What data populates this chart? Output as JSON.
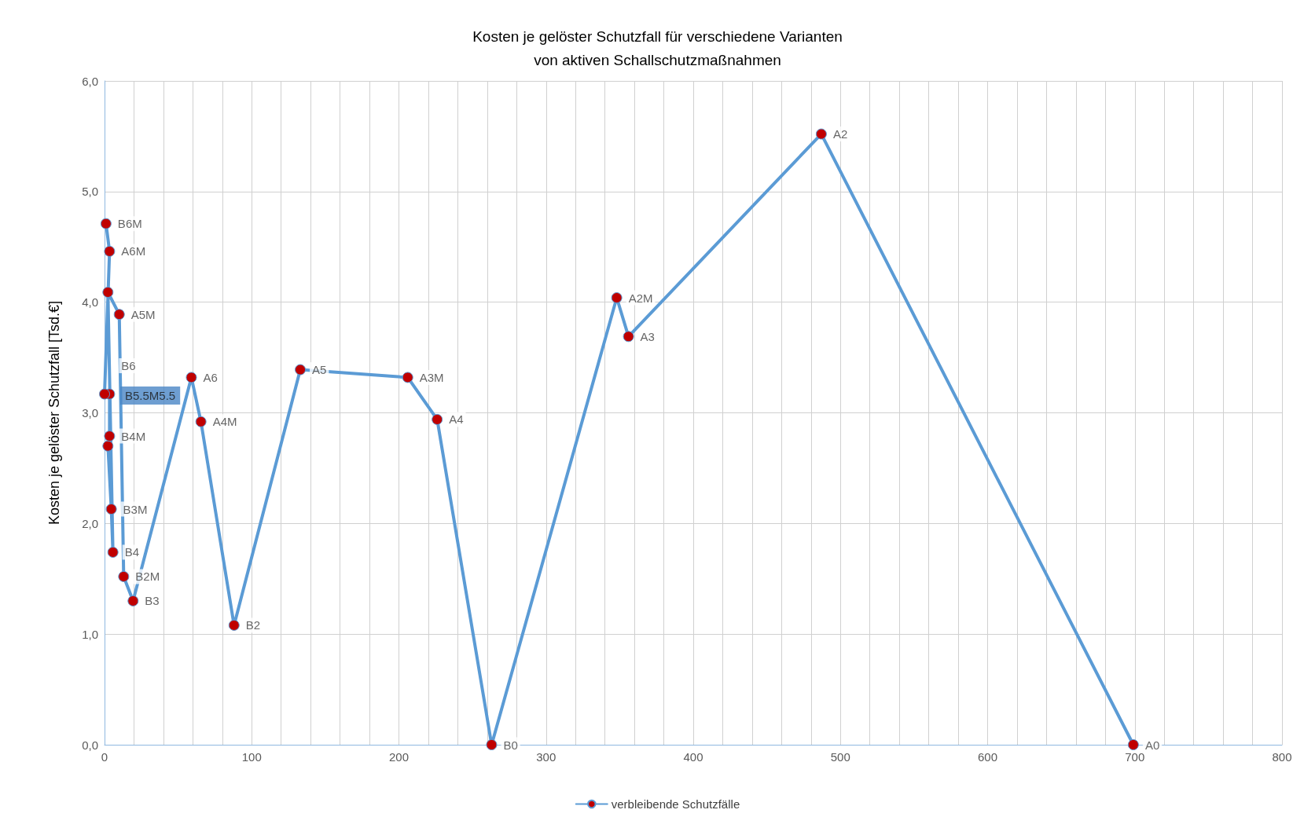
{
  "chart_data": {
    "type": "line",
    "title": "Kosten je gelöster Schutzfall für verschiedene Varianten\nvon aktiven Schallschutzmaßnahmen",
    "ylabel": "Kosten je gelöster Schutzfall [Tsd.€]",
    "series": [
      {
        "name": "verbleibende Schutzfälle",
        "color": "#5b9bd5",
        "x": [
          699,
          487,
          356,
          348,
          263,
          226,
          206,
          133,
          88,
          65.5,
          59,
          19.4,
          13,
          10,
          2.3,
          5.7,
          4.6,
          2.3,
          3.4,
          3.4,
          0,
          3.4,
          1
        ],
        "values": [
          0,
          5.52,
          3.69,
          4.04,
          0,
          2.94,
          3.32,
          3.39,
          1.08,
          2.92,
          3.32,
          1.3,
          1.52,
          3.89,
          4.09,
          1.74,
          2.13,
          2.7,
          2.79,
          3.17,
          3.17,
          4.46,
          4.71
        ],
        "colors": [
          "#c00000",
          "#c00000",
          "#c00000",
          "#c00000",
          "#c00000",
          "#c00000",
          "#c00000",
          "#c00000",
          "#c00000",
          "#c00000",
          "#c00000",
          "#c00000",
          "#c00000",
          "#c00000",
          "#c00000",
          "#c00000",
          "#c00000",
          "#c00000",
          "#c00000",
          "#c00000",
          "#c00000",
          "#c00000",
          "#c00000"
        ]
      }
    ],
    "annotations": [
      {
        "text": "A0",
        "x": 699,
        "y": 0
      },
      {
        "text": "A2",
        "x": 487,
        "y": 5.52
      },
      {
        "text": "A3",
        "x": 356,
        "y": 3.69
      },
      {
        "text": "A2M",
        "x": 348,
        "y": 4.04
      },
      {
        "text": "B0",
        "x": 263,
        "y": 0
      },
      {
        "text": "A4",
        "x": 226,
        "y": 2.94
      },
      {
        "text": "A3M",
        "x": 206,
        "y": 3.32
      },
      {
        "text": "A5",
        "x": 133,
        "y": 3.39
      },
      {
        "text": "B2",
        "x": 88,
        "y": 1.08
      },
      {
        "text": "A4M",
        "x": 65.5,
        "y": 2.92
      },
      {
        "text": "A6",
        "x": 59,
        "y": 3.32
      },
      {
        "text": "B3",
        "x": 19.4,
        "y": 1.3
      },
      {
        "text": "B2M",
        "x": 13,
        "y": 1.52
      },
      {
        "text": "A5M",
        "x": 10,
        "y": 3.89
      },
      {
        "text": "B4",
        "x": 5.7,
        "y": 1.74
      },
      {
        "text": "B3M",
        "x": 4.6,
        "y": 2.13
      },
      {
        "text": "B4M",
        "x": 3.4,
        "y": 2.79
      },
      {
        "text": "B6",
        "x": 3.4,
        "y": 3.17
      },
      {
        "text": "B5.5M5.5",
        "x": 0,
        "y": 3.17
      },
      {
        "text": "A6M",
        "x": 3.4,
        "y": 4.46
      },
      {
        "text": "B6M",
        "x": 1,
        "y": 4.71
      }
    ],
    "xlim": [
      0,
      800
    ],
    "xticks": [
      0,
      {
        "value": 20,
        "label": null
      },
      {
        "value": 40,
        "label": null
      },
      {
        "value": 60,
        "label": null
      },
      {
        "value": 80,
        "label": null
      },
      100,
      {
        "value": 120,
        "label": null
      },
      {
        "value": 140,
        "label": null
      },
      {
        "value": 160,
        "label": null
      },
      {
        "value": 180,
        "label": null
      },
      200,
      {
        "value": 220,
        "label": null
      },
      {
        "value": 240,
        "label": null
      },
      {
        "value": 260,
        "label": null
      },
      {
        "value": 280,
        "label": null
      },
      300,
      {
        "value": 320,
        "label": null
      },
      {
        "value": 340,
        "label": null
      },
      {
        "value": 360,
        "label": null
      },
      {
        "value": 380,
        "label": null
      },
      400,
      {
        "value": 420,
        "label": null
      },
      {
        "value": 440,
        "label": null
      },
      {
        "value": 460,
        "label": null
      },
      {
        "value": 480,
        "label": null
      },
      500,
      {
        "value": 520,
        "label": null
      },
      {
        "value": 540,
        "label": null
      },
      {
        "value": 560,
        "label": null
      },
      {
        "value": 580,
        "label": null
      },
      600,
      {
        "value": 620,
        "label": null
      },
      {
        "value": 640,
        "label": null
      },
      {
        "value": 660,
        "label": null
      },
      {
        "value": 680,
        "label": null
      },
      700,
      {
        "value": 720,
        "label": null
      },
      {
        "value": 740,
        "label": null
      },
      {
        "value": 760,
        "label": null
      },
      {
        "value": 780,
        "label": null
      },
      800
    ],
    "ylim": [
      0,
      6
    ],
    "yticks": [
      {
        "value": 0,
        "label": "0,0"
      },
      {
        "value": 1,
        "label": "1,0"
      },
      {
        "value": 2,
        "label": "2,0"
      },
      {
        "value": 3,
        "label": "3,0"
      },
      {
        "value": 4,
        "label": "4,0"
      },
      {
        "value": 5,
        "label": "5,0"
      },
      {
        "value": 6,
        "label": "6,0"
      }
    ],
    "grid": true,
    "legend": "bottom",
    "marker": "circle",
    "line_style": "solid"
  }
}
